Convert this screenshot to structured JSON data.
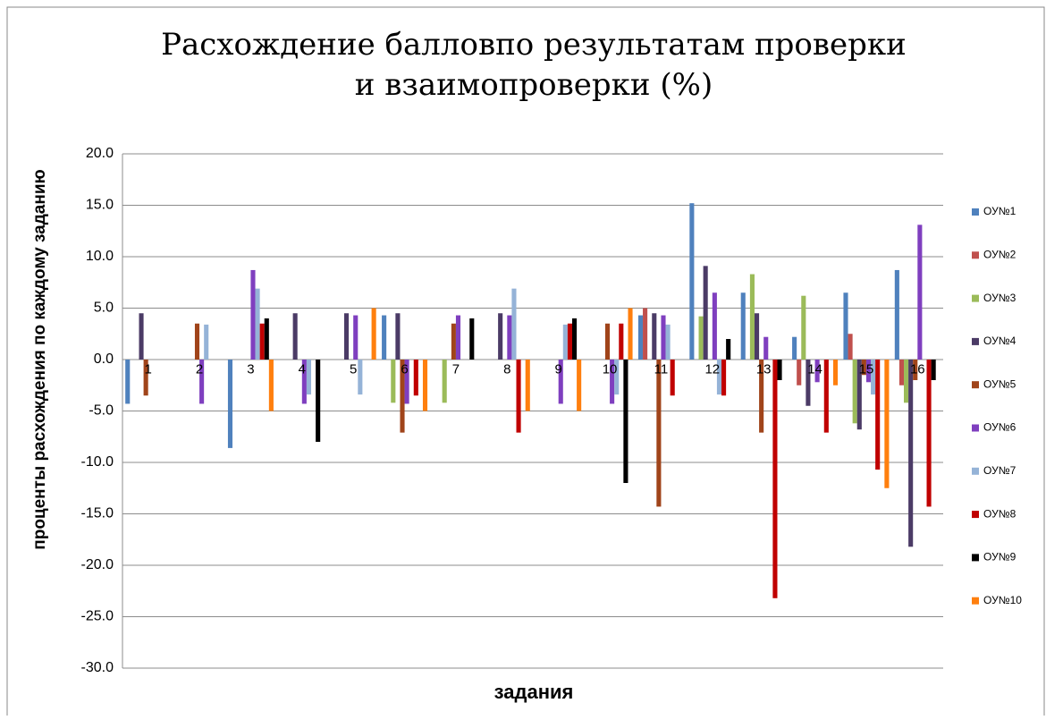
{
  "chart_data": {
    "type": "bar",
    "title": [
      "Расхождение балловпо результатам проверки",
      "и взаимопроверки (%)"
    ],
    "x_label": "задания",
    "y_label": "проценты расхождения по каждому заданию",
    "categories": [
      "1",
      "2",
      "3",
      "4",
      "5",
      "6",
      "7",
      "8",
      "9",
      "10",
      "11",
      "12",
      "13",
      "14",
      "15",
      "16"
    ],
    "ylim": [
      -30,
      20
    ],
    "yticks": [
      {
        "value": -30,
        "label": "-30.0"
      },
      {
        "value": -25,
        "label": "-25.0"
      },
      {
        "value": -20,
        "label": "-20.0"
      },
      {
        "value": -15,
        "label": "-15.0"
      },
      {
        "value": -10,
        "label": "-10.0"
      },
      {
        "value": -5,
        "label": "-5.0"
      },
      {
        "value": 0,
        "label": "0.0"
      },
      {
        "value": 5,
        "label": "5.0"
      },
      {
        "value": 10,
        "label": "10.0"
      },
      {
        "value": 15,
        "label": "15.0"
      },
      {
        "value": 20,
        "label": "20.0"
      }
    ],
    "grid": true,
    "legend": "right",
    "series": [
      {
        "name": "ОУ№1",
        "color": "#4f81bd",
        "values": [
          -4.3,
          0,
          -8.6,
          0,
          0,
          4.3,
          0,
          0,
          0,
          0,
          4.3,
          15.2,
          6.5,
          2.2,
          6.5,
          8.7
        ]
      },
      {
        "name": "ОУ№2",
        "color": "#c0504d",
        "values": [
          0,
          0,
          0,
          0,
          0,
          0,
          0,
          0,
          0,
          0,
          5.0,
          0,
          0,
          -2.5,
          2.5,
          -2.5
        ]
      },
      {
        "name": "ОУ№3",
        "color": "#9bbb59",
        "values": [
          0,
          0,
          0,
          0,
          0,
          -4.2,
          -4.2,
          0,
          0,
          0,
          0,
          4.2,
          8.3,
          6.2,
          -6.2,
          -4.2
        ]
      },
      {
        "name": "ОУ№4",
        "color": "#4b3b66",
        "values": [
          4.5,
          0,
          0,
          4.5,
          4.5,
          4.5,
          0,
          4.5,
          0,
          0,
          4.5,
          9.1,
          4.5,
          -4.5,
          -6.8,
          -18.2
        ]
      },
      {
        "name": "ОУ№5",
        "color": "#a0441a",
        "values": [
          -3.5,
          3.5,
          0,
          0,
          0,
          -7.1,
          3.5,
          0,
          0,
          3.5,
          -14.3,
          0,
          -7.1,
          0,
          -1.5,
          -2.0
        ]
      },
      {
        "name": "ОУ№6",
        "color": "#7f3fbf",
        "values": [
          0,
          -4.3,
          8.7,
          -4.3,
          4.3,
          -4.3,
          4.3,
          4.3,
          -4.3,
          -4.3,
          4.3,
          6.5,
          2.2,
          -2.2,
          -2.2,
          13.1
        ]
      },
      {
        "name": "ОУ№7",
        "color": "#95b3d7",
        "values": [
          0,
          3.4,
          6.9,
          -3.4,
          -3.4,
          0,
          0,
          6.9,
          3.4,
          -3.4,
          3.4,
          -3.4,
          0,
          0,
          -3.4,
          0
        ]
      },
      {
        "name": "ОУ№8",
        "color": "#c00000",
        "values": [
          0,
          0,
          3.5,
          0,
          0,
          -3.5,
          0,
          -7.1,
          3.5,
          3.5,
          -3.5,
          -3.5,
          -23.2,
          -7.1,
          -10.7,
          -14.3
        ]
      },
      {
        "name": "ОУ№9",
        "color": "#000000",
        "values": [
          0,
          0,
          4.0,
          -8.0,
          0,
          0,
          4.0,
          0,
          4.0,
          -12.0,
          0,
          2.0,
          -2.0,
          0,
          0,
          -2.0
        ]
      },
      {
        "name": "ОУ№10",
        "color": "#ff7f0e",
        "values": [
          0,
          0,
          -5.0,
          0,
          5.0,
          -5.0,
          0,
          -5.0,
          -5.0,
          5.0,
          0,
          0,
          0,
          -2.5,
          -12.5,
          0
        ]
      }
    ]
  }
}
